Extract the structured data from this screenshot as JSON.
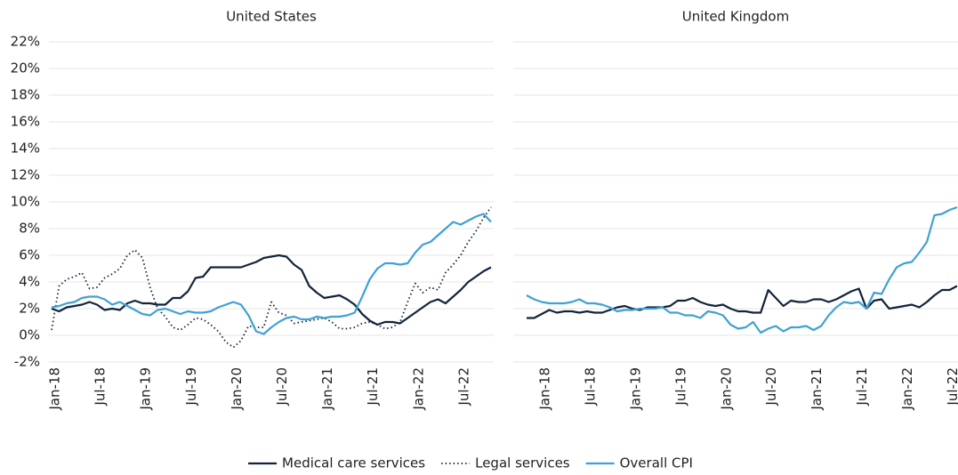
{
  "chart_data": [
    {
      "type": "line",
      "title": "United States",
      "categories": [
        "Jan-18",
        null,
        null,
        null,
        null,
        null,
        "Jul-18",
        null,
        null,
        null,
        null,
        null,
        "Jan-19",
        null,
        null,
        null,
        null,
        null,
        "Jul-19",
        null,
        null,
        null,
        null,
        null,
        "Jan-20",
        null,
        null,
        null,
        null,
        null,
        "Jul-20",
        null,
        null,
        null,
        null,
        null,
        "Jan-21",
        null,
        null,
        null,
        null,
        null,
        "Jul-21",
        null,
        null,
        null,
        null,
        null,
        "Jan-22",
        null,
        null,
        null,
        null,
        null,
        "Jul-22",
        null,
        null,
        null,
        null
      ],
      "ylim": [
        -2,
        22
      ],
      "yticks": [
        {
          "value": -2,
          "label": "-2%"
        },
        {
          "value": 0,
          "label": "0%"
        },
        {
          "value": 2,
          "label": "2%"
        },
        {
          "value": 4,
          "label": "4%"
        },
        {
          "value": 6,
          "label": "6%"
        },
        {
          "value": 8,
          "label": "8%"
        },
        {
          "value": 10,
          "label": "10%"
        },
        {
          "value": 12,
          "label": "12%"
        },
        {
          "value": 14,
          "label": "14%"
        },
        {
          "value": 16,
          "label": "16%"
        },
        {
          "value": 18,
          "label": "18%"
        },
        {
          "value": 20,
          "label": "20%"
        },
        {
          "value": 22,
          "label": "22%"
        }
      ],
      "grid": true,
      "series": [
        {
          "name": "Medical care services",
          "color": "#14233c",
          "dash": "solid",
          "values": [
            2.0,
            1.8,
            2.1,
            2.2,
            2.3,
            2.5,
            2.3,
            1.9,
            2.0,
            1.9,
            2.4,
            2.6,
            2.4,
            2.4,
            2.3,
            2.3,
            2.8,
            2.8,
            3.3,
            4.3,
            4.4,
            5.1,
            5.1,
            5.1,
            5.1,
            5.1,
            5.3,
            5.5,
            5.8,
            5.9,
            6.0,
            5.9,
            5.3,
            4.9,
            3.7,
            3.2,
            2.8,
            2.9,
            3.0,
            2.7,
            2.3,
            1.6,
            1.1,
            0.8,
            1.0,
            1.0,
            0.9,
            1.3,
            1.7,
            2.1,
            2.5,
            2.7,
            2.4,
            2.9,
            3.4,
            4.0,
            4.4,
            4.8,
            5.1
          ]
        },
        {
          "name": "Legal services",
          "color": "#14233c",
          "dash": "dotted",
          "values": [
            0.4,
            3.7,
            4.2,
            4.4,
            4.7,
            3.5,
            3.6,
            4.3,
            4.6,
            5.0,
            6.0,
            6.4,
            5.8,
            3.6,
            2.0,
            1.4,
            0.6,
            0.4,
            0.8,
            1.3,
            1.2,
            0.8,
            0.3,
            -0.5,
            -0.9,
            -0.4,
            0.7,
            0.6,
            0.6,
            2.5,
            1.7,
            1.5,
            0.9,
            1.0,
            1.1,
            1.2,
            1.3,
            1.0,
            0.5,
            0.5,
            0.6,
            0.9,
            1.0,
            0.8,
            0.5,
            0.6,
            1.0,
            2.5,
            3.9,
            3.2,
            3.6,
            3.4,
            4.7,
            5.3,
            6.0,
            7.0,
            7.8,
            8.8,
            9.6
          ]
        },
        {
          "name": "Overall CPI",
          "color": "#3fa1d4",
          "dash": "solid",
          "values": [
            2.1,
            2.2,
            2.4,
            2.5,
            2.8,
            2.9,
            2.9,
            2.7,
            2.3,
            2.5,
            2.2,
            1.9,
            1.6,
            1.5,
            1.9,
            2.0,
            1.8,
            1.6,
            1.8,
            1.7,
            1.7,
            1.8,
            2.1,
            2.3,
            2.5,
            2.3,
            1.5,
            0.3,
            0.1,
            0.6,
            1.0,
            1.3,
            1.4,
            1.2,
            1.2,
            1.4,
            1.3,
            1.4,
            1.4,
            1.5,
            1.7,
            2.9,
            4.2,
            5.0,
            5.4,
            5.4,
            5.3,
            5.4,
            6.2,
            6.8,
            7.0,
            7.5,
            8.0,
            8.5,
            8.3,
            8.6,
            8.9,
            9.1,
            8.5
          ]
        }
      ]
    },
    {
      "type": "line",
      "title": "United Kingdom",
      "categories": [
        null,
        null,
        "Jan-18",
        null,
        null,
        null,
        null,
        null,
        "Jul-18",
        null,
        null,
        null,
        null,
        null,
        "Jan-19",
        null,
        null,
        null,
        null,
        null,
        "Jul-19",
        null,
        null,
        null,
        null,
        null,
        "Jan-20",
        null,
        null,
        null,
        null,
        null,
        "Jul-20",
        null,
        null,
        null,
        null,
        null,
        "Jan-21",
        null,
        null,
        null,
        null,
        null,
        "Jul-21",
        null,
        null,
        null,
        null,
        null,
        "Jan-22",
        null,
        null,
        null,
        null,
        null,
        "Jul-22",
        null
      ],
      "ylim": [
        -2,
        22
      ],
      "yticks": [
        -2,
        0,
        2,
        4,
        6,
        8,
        10,
        12,
        14,
        16,
        18,
        20,
        22
      ],
      "grid": true,
      "series": [
        {
          "color": "#14233c",
          "dash": "solid",
          "values": [
            1.3,
            1.3,
            1.6,
            1.9,
            1.7,
            1.8,
            1.8,
            1.7,
            1.8,
            1.7,
            1.7,
            1.9,
            2.1,
            2.2,
            2.0,
            1.9,
            2.1,
            2.1,
            2.1,
            2.2,
            2.6,
            2.6,
            2.8,
            2.5,
            2.3,
            2.2,
            2.3,
            2.0,
            1.8,
            1.8,
            1.7,
            1.7,
            3.4,
            2.8,
            2.2,
            2.6,
            2.5,
            2.5,
            2.7,
            2.7,
            2.5,
            2.7,
            3.0,
            3.3,
            3.5,
            2.0,
            2.6,
            2.7,
            2.0,
            2.1,
            2.2,
            2.3,
            2.1,
            2.5,
            3.0,
            3.4,
            3.4,
            3.7
          ]
        },
        {
          "color": "#3fa1d4",
          "dash": "solid",
          "values": [
            3.0,
            2.7,
            2.5,
            2.4,
            2.4,
            2.4,
            2.5,
            2.7,
            2.4,
            2.4,
            2.3,
            2.1,
            1.8,
            1.9,
            1.9,
            2.0,
            2.0,
            2.0,
            2.1,
            1.7,
            1.7,
            1.5,
            1.5,
            1.3,
            1.8,
            1.7,
            1.5,
            0.8,
            0.5,
            0.6,
            1.0,
            0.2,
            0.5,
            0.7,
            0.3,
            0.6,
            0.6,
            0.7,
            0.4,
            0.7,
            1.5,
            2.1,
            2.5,
            2.4,
            2.5,
            2.0,
            3.2,
            3.1,
            4.2,
            5.1,
            5.4,
            5.5,
            6.2,
            7.0,
            9.0,
            9.1,
            9.4,
            9.6
          ]
        }
      ]
    }
  ]
}
